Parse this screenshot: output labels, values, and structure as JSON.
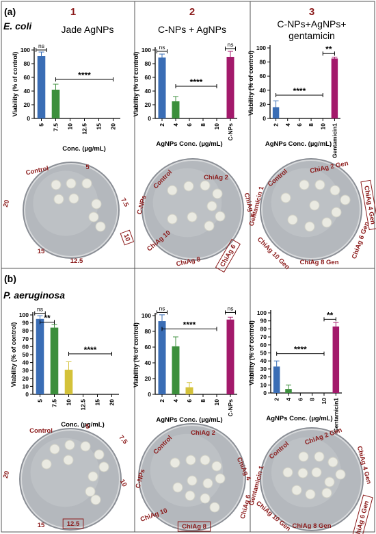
{
  "figure": {
    "sections": [
      {
        "label": "(a)",
        "organism": "E. coli"
      },
      {
        "label": "(b)",
        "organism": "P. aeruginosa"
      }
    ],
    "column_numbers": [
      "1",
      "2",
      "3"
    ],
    "column_titles": [
      "Jade AgNPs",
      "C-NPs + AgNPs",
      "C-NPs+AgNPs+\ngentamicin"
    ],
    "ylabel": "Viability (% of control)",
    "xlabels": [
      "Conc. (µg/mL)",
      "AgNPs Conc. (µg/mL)",
      "AgNPs Conc. (µg/mL)"
    ],
    "colors": {
      "blue": "#3a6db5",
      "green": "#3c8f3c",
      "yellow": "#d4c23a",
      "magenta": "#a3196b",
      "accent": "#8b1a1a",
      "error": "#c070c0"
    }
  },
  "chart_data": [
    {
      "type": "bar",
      "id": "a1",
      "categories": [
        "5",
        "7.5",
        "10",
        "12.5",
        "15",
        "20"
      ],
      "values": [
        91,
        42,
        0,
        0,
        0,
        0
      ],
      "errors": [
        6,
        8,
        0,
        0,
        0,
        0
      ],
      "colors": [
        "blue",
        "green",
        "blue",
        "blue",
        "blue",
        "blue"
      ],
      "ylim": [
        0,
        100
      ],
      "yticks": [
        0,
        20,
        40,
        60,
        80,
        100
      ],
      "significance": [
        {
          "from": 0,
          "to": 0,
          "y": 100,
          "label": "ns"
        },
        {
          "from": 1,
          "to": 5,
          "y": 57,
          "label": "****"
        }
      ]
    },
    {
      "type": "bar",
      "id": "a2",
      "categories": [
        "2",
        "4",
        "6",
        "8",
        "10",
        "C-NPs"
      ],
      "values": [
        89,
        25,
        0,
        0,
        0,
        90
      ],
      "errors": [
        5,
        7,
        0,
        0,
        0,
        8
      ],
      "colors": [
        "blue",
        "green",
        "blue",
        "blue",
        "blue",
        "magenta"
      ],
      "ylim": [
        0,
        100
      ],
      "yticks": [
        0,
        20,
        40,
        60,
        80,
        100
      ],
      "significance": [
        {
          "from": 0,
          "to": 0,
          "y": 98,
          "label": "ns"
        },
        {
          "from": 1,
          "to": 4,
          "y": 47,
          "label": "****"
        },
        {
          "from": 5,
          "to": 5,
          "y": 102,
          "label": "ns"
        }
      ]
    },
    {
      "type": "bar",
      "id": "a3",
      "categories": [
        "2",
        "4",
        "6",
        "8",
        "10",
        "Gentamicin1"
      ],
      "values": [
        16,
        0,
        0,
        0,
        0,
        85
      ],
      "errors": [
        9,
        0,
        0,
        0,
        0,
        2
      ],
      "colors": [
        "blue",
        "blue",
        "blue",
        "blue",
        "blue",
        "magenta"
      ],
      "ylim": [
        0,
        100
      ],
      "yticks": [
        0,
        20,
        40,
        60,
        80,
        100
      ],
      "significance": [
        {
          "from": 0,
          "to": 4,
          "y": 33,
          "label": "****"
        },
        {
          "from": 4,
          "to": 5,
          "y": 92,
          "label": "**"
        }
      ]
    },
    {
      "type": "bar",
      "id": "b1",
      "categories": [
        "5",
        "7.5",
        "10",
        "12.5",
        "15",
        "20"
      ],
      "values": [
        95,
        84,
        31,
        0,
        0,
        0
      ],
      "errors": [
        4,
        4,
        10,
        0,
        0,
        0
      ],
      "colors": [
        "blue",
        "green",
        "yellow",
        "blue",
        "blue",
        "blue"
      ],
      "ylim": [
        0,
        100
      ],
      "yticks": [
        0,
        10,
        20,
        30,
        40,
        50,
        60,
        70,
        80,
        90,
        100
      ],
      "significance": [
        {
          "from": 0,
          "to": 0,
          "y": 102,
          "label": "ns"
        },
        {
          "from": 0,
          "to": 1,
          "y": 91,
          "label": "**"
        },
        {
          "from": 2,
          "to": 5,
          "y": 51,
          "label": "****"
        }
      ]
    },
    {
      "type": "bar",
      "id": "b2",
      "categories": [
        "2",
        "4",
        "6",
        "8",
        "10",
        "C-NPs"
      ],
      "values": [
        93,
        61,
        9,
        0,
        0,
        95
      ],
      "errors": [
        8,
        12,
        6,
        0,
        0,
        3
      ],
      "colors": [
        "blue",
        "green",
        "yellow",
        "blue",
        "blue",
        "magenta"
      ],
      "ylim": [
        0,
        100
      ],
      "yticks": [
        0,
        20,
        40,
        60,
        80,
        100
      ],
      "significance": [
        {
          "from": 0,
          "to": 0,
          "y": 104,
          "label": "ns"
        },
        {
          "from": 0,
          "to": 4,
          "y": 83,
          "label": "****"
        },
        {
          "from": 5,
          "to": 5,
          "y": 104,
          "label": "ns"
        }
      ]
    },
    {
      "type": "bar",
      "id": "b3",
      "categories": [
        "2",
        "4",
        "6",
        "8",
        "10",
        "Gentamicin1"
      ],
      "values": [
        33,
        5,
        0,
        0,
        0,
        83
      ],
      "errors": [
        7,
        5,
        0,
        0,
        0,
        5
      ],
      "colors": [
        "blue",
        "green",
        "blue",
        "blue",
        "blue",
        "magenta"
      ],
      "ylim": [
        0,
        100
      ],
      "yticks": [
        0,
        10,
        20,
        30,
        40,
        50,
        60,
        70,
        80,
        90,
        100
      ],
      "significance": [
        {
          "from": 0,
          "to": 4,
          "y": 49,
          "label": "****"
        },
        {
          "from": 4,
          "to": 5,
          "y": 92,
          "label": "**"
        }
      ]
    }
  ],
  "plates": [
    {
      "id": "pa1",
      "labels": [
        "Control",
        "5",
        "7.5",
        "10",
        "12.5",
        "15",
        "20"
      ],
      "boxed": "10"
    },
    {
      "id": "pa2",
      "labels": [
        "Control",
        "ChiAg 2",
        "ChiAg 4",
        "ChiAg 6",
        "ChiAg 8",
        "ChiAg 10",
        "C-NPs"
      ],
      "boxed": "ChiAg 6"
    },
    {
      "id": "pa3",
      "labels": [
        "Control",
        "ChiAg 2 Gen",
        "ChiAg 4 Gen",
        "ChiAg 6 Gen",
        "ChiAg 8 Gen",
        "ChiAg 10 Gen",
        "Gentamicin 1"
      ],
      "boxed": "ChiAg 4 Gen"
    },
    {
      "id": "pb1",
      "labels": [
        "Control",
        "5",
        "7.5",
        "10",
        "12.5",
        "15",
        "20"
      ],
      "boxed": "12.5"
    },
    {
      "id": "pb2",
      "labels": [
        "Control",
        "ChiAg 2",
        "ChiAg 4",
        "ChiAg 6",
        "ChiAg 8",
        "ChiAg 10",
        "C-NPs"
      ],
      "boxed": "ChiAg 8"
    },
    {
      "id": "pb3",
      "labels": [
        "Control",
        "ChiAg 2 Gen",
        "ChiAg 4 Gen",
        "ChiAg 6 Gen",
        "ChiAg 8 Gen",
        "ChiAg 10 Gen",
        "Gentamicin 1"
      ],
      "boxed": "ChiAg 6 Gen"
    }
  ]
}
